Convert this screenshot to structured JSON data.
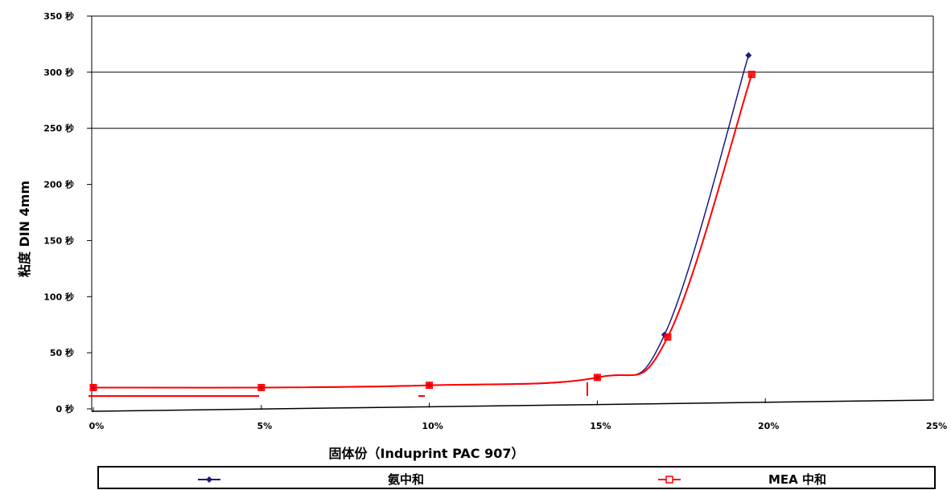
{
  "chart_data": {
    "type": "line",
    "title": "",
    "xlabel": "固体份（Induprint PAC 907）",
    "ylabel": "粘度 DIN 4mm",
    "x_ticks": [
      "0%",
      "5%",
      "10%",
      "15%",
      "20%",
      "25%"
    ],
    "y_ticks": [
      "0 秒",
      "50 秒",
      "100 秒",
      "150 秒",
      "200 秒",
      "250 秒",
      "300 秒",
      "350 秒"
    ],
    "xlim": [
      0,
      25
    ],
    "ylim": [
      0,
      350
    ],
    "grid": "horizontal lines at 250 and 300",
    "legend_position": "bottom",
    "series": [
      {
        "name": "氨中和",
        "color": "#1a1a80",
        "marker": "diamond",
        "x": [
          0,
          5,
          10,
          15,
          17,
          19.5
        ],
        "y": [
          19,
          19,
          21,
          28,
          66,
          315
        ]
      },
      {
        "name": "MEA 中和",
        "color": "#ff0000",
        "marker": "square",
        "x": [
          0,
          5,
          10,
          15,
          17,
          19.5
        ],
        "y": [
          19,
          19,
          21,
          28,
          64,
          298
        ]
      }
    ]
  }
}
